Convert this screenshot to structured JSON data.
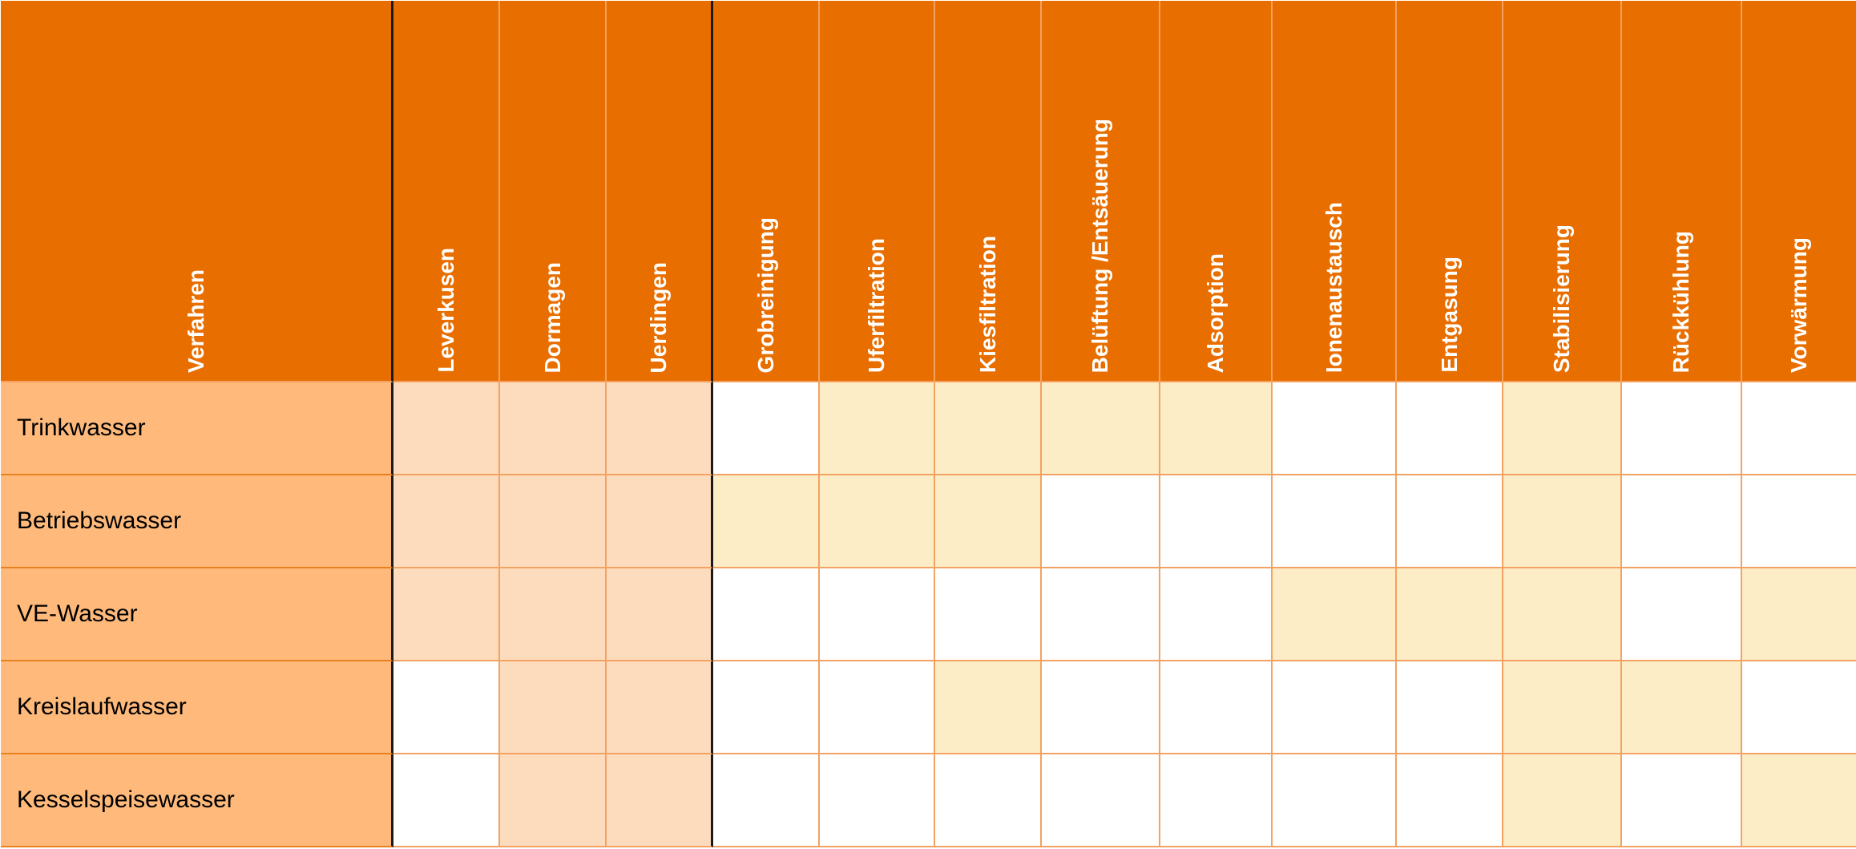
{
  "colors": {
    "header": "#e86e00",
    "row_label": "#ffba7b",
    "site_marked": "#fddcbd",
    "process_marked": "#fdedc6",
    "empty": "#ffffff",
    "grid_line": "#f2a262",
    "group_divider": "#1a1a1a"
  },
  "corner_label": "Verfahren",
  "sites": [
    "Leverkusen",
    "Dormagen",
    "Uerdingen"
  ],
  "processes": [
    "Grobreinigung",
    "Uferfiltration",
    "Kiesfiltration",
    "Belüftung /Entsäuerung",
    "Adsorption",
    "Ionenaustausch",
    "Entgasung",
    "Stabilisierung",
    "Rückkühlung",
    "Vorwärmung"
  ],
  "rows": [
    {
      "label": "Trinkwasser",
      "sites": [
        true,
        true,
        true
      ],
      "processes": [
        false,
        true,
        true,
        true,
        true,
        false,
        false,
        true,
        false,
        false
      ]
    },
    {
      "label": "Betriebswasser",
      "sites": [
        true,
        true,
        true
      ],
      "processes": [
        true,
        true,
        true,
        false,
        false,
        false,
        false,
        true,
        false,
        false
      ]
    },
    {
      "label": "VE-Wasser",
      "sites": [
        true,
        true,
        true
      ],
      "processes": [
        false,
        false,
        false,
        false,
        false,
        true,
        true,
        true,
        false,
        true
      ]
    },
    {
      "label": "Kreislaufwasser",
      "sites": [
        false,
        true,
        true
      ],
      "processes": [
        false,
        false,
        true,
        false,
        false,
        false,
        false,
        true,
        true,
        false
      ]
    },
    {
      "label": "Kesselspeisewasser",
      "sites": [
        false,
        true,
        true
      ],
      "processes": [
        false,
        false,
        false,
        false,
        false,
        false,
        false,
        true,
        false,
        true
      ]
    }
  ]
}
